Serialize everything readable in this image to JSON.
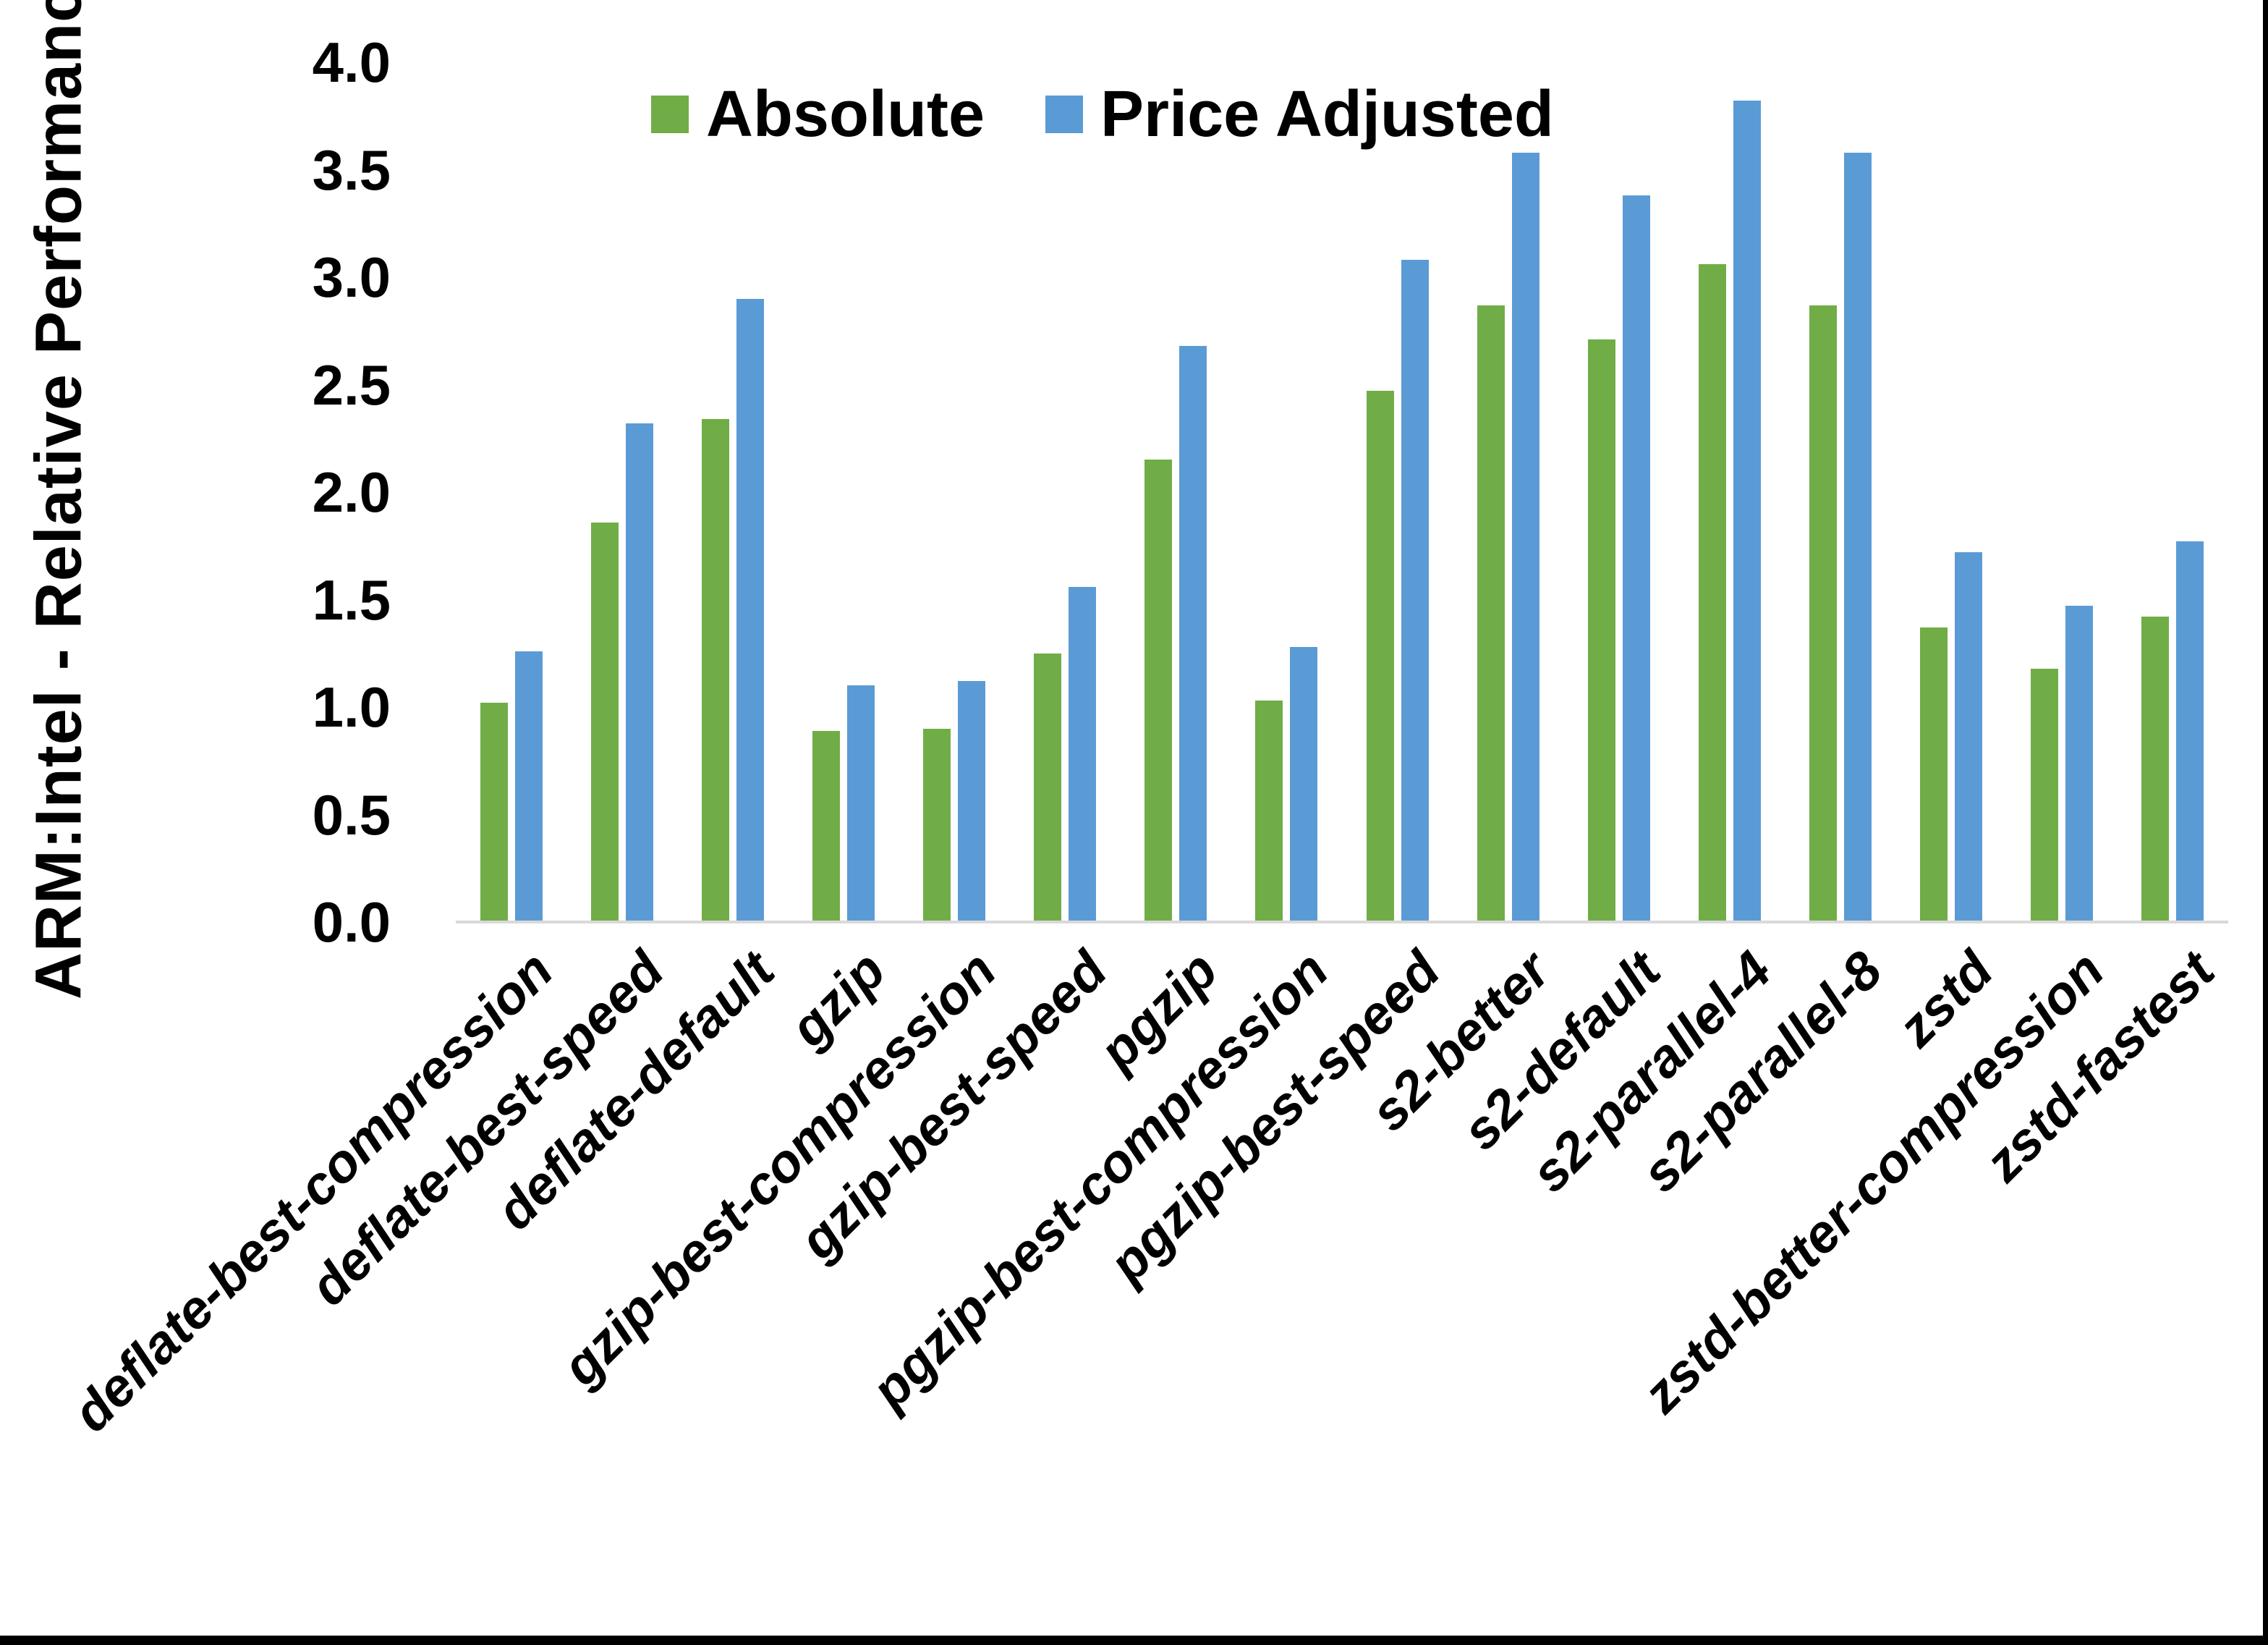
{
  "chart_data": {
    "type": "bar",
    "title": "",
    "xlabel": "",
    "ylabel": "ARM:Intel - Relative Performance",
    "ylim": [
      0,
      4
    ],
    "y_tick_step": 0.5,
    "y_ticks": [
      "0.0",
      "0.5",
      "1.0",
      "1.5",
      "2.0",
      "2.5",
      "3.0",
      "3.5",
      "4.0"
    ],
    "grid": false,
    "legend_position": "top-center-inside",
    "axis_line_color": "#D9D9D9",
    "categories": [
      "deflate-best-compression",
      "deflate-best-speed",
      "deflate-default",
      "gzip",
      "gzip-best-compression",
      "gzip-best-speed",
      "pgzip",
      "pgzip-best-compression",
      "pgzip-best-speed",
      "s2-better",
      "s2-default",
      "s2-parallel-4",
      "s2-parallel-8",
      "zstd",
      "zstd-better-compression",
      "zstd-fastest"
    ],
    "series": [
      {
        "name": "Absolute",
        "color": "#70AD47",
        "values": [
          1.02,
          1.86,
          2.34,
          0.89,
          0.9,
          1.25,
          2.15,
          1.03,
          2.47,
          2.87,
          2.71,
          3.06,
          2.87,
          1.37,
          1.18,
          1.42
        ]
      },
      {
        "name": "Price Adjusted",
        "color": "#5B9BD5",
        "values": [
          1.26,
          2.32,
          2.9,
          1.1,
          1.12,
          1.56,
          2.68,
          1.28,
          3.08,
          3.58,
          3.38,
          3.82,
          3.58,
          1.72,
          1.47,
          1.77
        ]
      }
    ]
  }
}
